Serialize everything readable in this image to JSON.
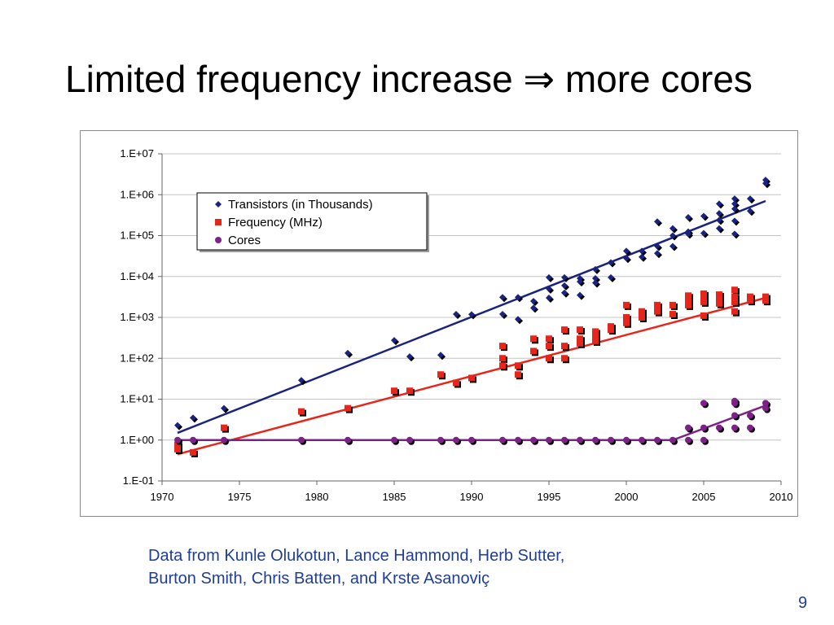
{
  "slide": {
    "title": "Limited frequency increase ⇒ more cores",
    "caption_line1": "Data from Kunle Olukotun, Lance Hammond, Herb Sutter,",
    "caption_line2": "Burton Smith, Chris Batten, and Krste Asanoviç",
    "page_number": "9"
  },
  "chart_data": {
    "type": "scatter",
    "title": "",
    "xlabel": "",
    "ylabel": "",
    "yscale": "log",
    "xlim": [
      1970,
      2010
    ],
    "ylim_log10": [
      -1,
      7
    ],
    "x_ticks": [
      1970,
      1975,
      1980,
      1985,
      1990,
      1995,
      2000,
      2005,
      2010
    ],
    "x_tick_labels": [
      "1970",
      "1975",
      "1980",
      "1985",
      "1990",
      "1995",
      "2000",
      "2005",
      "2010"
    ],
    "y_ticks_log10": [
      7,
      6,
      5,
      4,
      3,
      2,
      1,
      0,
      -1
    ],
    "y_tick_labels": [
      "1.E+07",
      "1.E+06",
      "1.E+05",
      "1.E+04",
      "1.E+03",
      "1.E+02",
      "1.E+01",
      "1.E+00",
      "1.E-01"
    ],
    "grid": true,
    "legend_position": "top-left",
    "series": [
      {
        "name": "Transistors (in Thousands)",
        "color": "#1a237e",
        "marker": "diamond",
        "points": [
          [
            1971,
            2.3
          ],
          [
            1972,
            3.5
          ],
          [
            1974,
            6
          ],
          [
            1979,
            29
          ],
          [
            1982,
            134
          ],
          [
            1985,
            275
          ],
          [
            1986,
            110
          ],
          [
            1988,
            120
          ],
          [
            1989,
            1200
          ],
          [
            1990,
            1180
          ],
          [
            1992,
            3100
          ],
          [
            1992,
            1200
          ],
          [
            1993,
            3100
          ],
          [
            1993,
            900
          ],
          [
            1994,
            2500
          ],
          [
            1994,
            1700
          ],
          [
            1995,
            9500
          ],
          [
            1995,
            5000
          ],
          [
            1995,
            3000
          ],
          [
            1996,
            9500
          ],
          [
            1996,
            6000
          ],
          [
            1996,
            4000
          ],
          [
            1997,
            9000
          ],
          [
            1997,
            7500
          ],
          [
            1997,
            3500
          ],
          [
            1998,
            15000
          ],
          [
            1998,
            9000
          ],
          [
            1998,
            7000
          ],
          [
            1999,
            22000
          ],
          [
            1999,
            9500
          ],
          [
            2000,
            42000
          ],
          [
            2000,
            28000
          ],
          [
            2001,
            42000
          ],
          [
            2001,
            30000
          ],
          [
            2002,
            220000
          ],
          [
            2002,
            55000
          ],
          [
            2002,
            37000
          ],
          [
            2003,
            150000
          ],
          [
            2003,
            100000
          ],
          [
            2003,
            55000
          ],
          [
            2004,
            280000
          ],
          [
            2004,
            125000
          ],
          [
            2004,
            110000
          ],
          [
            2005,
            300000
          ],
          [
            2005,
            115000
          ],
          [
            2006,
            600000
          ],
          [
            2006,
            350000
          ],
          [
            2006,
            240000
          ],
          [
            2006,
            150000
          ],
          [
            2007,
            800000
          ],
          [
            2007,
            600000
          ],
          [
            2007,
            450000
          ],
          [
            2007,
            230000
          ],
          [
            2007,
            110000
          ],
          [
            2008,
            800000
          ],
          [
            2008,
            400000
          ],
          [
            2009,
            2300000
          ],
          [
            2009,
            1900000
          ]
        ],
        "trend": [
          [
            1971,
            1.5
          ],
          [
            2009,
            700000
          ]
        ]
      },
      {
        "name": "Frequency (MHz)",
        "color": "#e8251a",
        "marker": "square",
        "points": [
          [
            1971,
            0.75
          ],
          [
            1971,
            0.6
          ],
          [
            1972,
            0.5
          ],
          [
            1974,
            2
          ],
          [
            1979,
            5
          ],
          [
            1982,
            6
          ],
          [
            1985,
            16
          ],
          [
            1986,
            16
          ],
          [
            1988,
            40
          ],
          [
            1989,
            25
          ],
          [
            1990,
            33
          ],
          [
            1992,
            200
          ],
          [
            1992,
            100
          ],
          [
            1992,
            66
          ],
          [
            1993,
            66
          ],
          [
            1993,
            40
          ],
          [
            1994,
            300
          ],
          [
            1994,
            150
          ],
          [
            1995,
            300
          ],
          [
            1995,
            200
          ],
          [
            1995,
            100
          ],
          [
            1996,
            500
          ],
          [
            1996,
            200
          ],
          [
            1996,
            100
          ],
          [
            1997,
            500
          ],
          [
            1997,
            300
          ],
          [
            1997,
            233
          ],
          [
            1998,
            450
          ],
          [
            1998,
            350
          ],
          [
            1998,
            266
          ],
          [
            1999,
            600
          ],
          [
            1999,
            500
          ],
          [
            2000,
            2000
          ],
          [
            2000,
            1000
          ],
          [
            2000,
            733
          ],
          [
            2001,
            1400
          ],
          [
            2001,
            1000
          ],
          [
            2002,
            2000
          ],
          [
            2002,
            1400
          ],
          [
            2003,
            2000
          ],
          [
            2003,
            1200
          ],
          [
            2004,
            3400
          ],
          [
            2004,
            2800
          ],
          [
            2004,
            2000
          ],
          [
            2005,
            3800
          ],
          [
            2005,
            3000
          ],
          [
            2005,
            2400
          ],
          [
            2005,
            1100
          ],
          [
            2006,
            3600
          ],
          [
            2006,
            2800
          ],
          [
            2006,
            2200
          ],
          [
            2007,
            4700
          ],
          [
            2007,
            3200
          ],
          [
            2007,
            2400
          ],
          [
            2007,
            1400
          ],
          [
            2008,
            3200
          ],
          [
            2008,
            2600
          ],
          [
            2009,
            3200
          ],
          [
            2009,
            2600
          ]
        ],
        "trend": [
          [
            1971,
            0.45
          ],
          [
            2009,
            3000
          ]
        ]
      },
      {
        "name": "Cores",
        "color": "#7d2088",
        "marker": "circle",
        "points": [
          [
            1971,
            1
          ],
          [
            1972,
            1
          ],
          [
            1974,
            1
          ],
          [
            1979,
            1
          ],
          [
            1982,
            1
          ],
          [
            1985,
            1
          ],
          [
            1986,
            1
          ],
          [
            1988,
            1
          ],
          [
            1989,
            1
          ],
          [
            1990,
            1
          ],
          [
            1992,
            1
          ],
          [
            1993,
            1
          ],
          [
            1994,
            1
          ],
          [
            1995,
            1
          ],
          [
            1996,
            1
          ],
          [
            1997,
            1
          ],
          [
            1998,
            1
          ],
          [
            1999,
            1
          ],
          [
            2000,
            1
          ],
          [
            2001,
            1
          ],
          [
            2002,
            1
          ],
          [
            2003,
            1
          ],
          [
            2004,
            2
          ],
          [
            2004,
            1
          ],
          [
            2005,
            8
          ],
          [
            2005,
            2
          ],
          [
            2005,
            1
          ],
          [
            2006,
            2
          ],
          [
            2007,
            9
          ],
          [
            2007,
            8
          ],
          [
            2007,
            4
          ],
          [
            2007,
            2
          ],
          [
            2008,
            4
          ],
          [
            2008,
            2
          ],
          [
            2009,
            8
          ],
          [
            2009,
            6
          ]
        ],
        "trend": [
          [
            1971,
            1
          ],
          [
            2003,
            1
          ],
          [
            2009,
            7
          ]
        ]
      }
    ]
  }
}
